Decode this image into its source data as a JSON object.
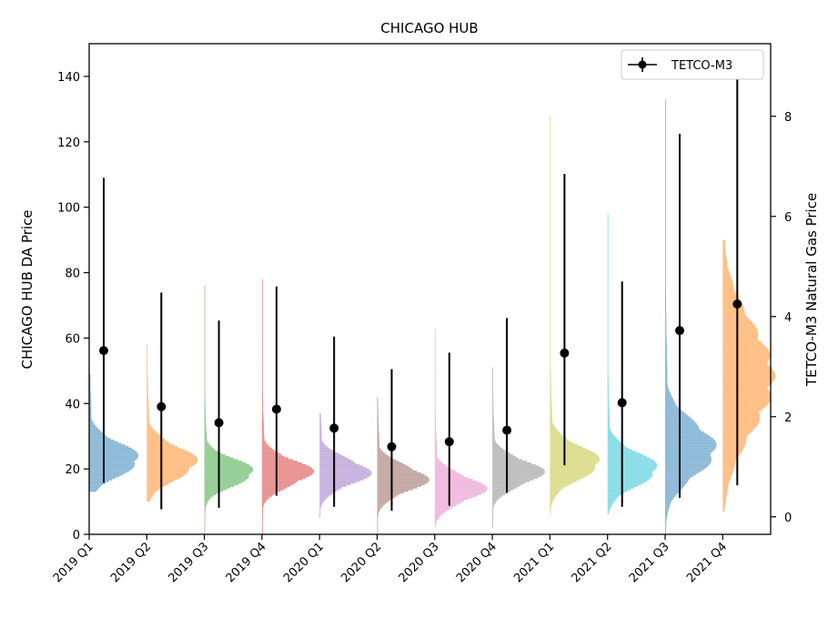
{
  "chart_data": {
    "type": "violin-histogram-errorbar",
    "title": "CHICAGO HUB",
    "ylabel_left": "CHICAGO HUB DA Price",
    "ylabel_right": "TETCO-M3 Natural Gas Price",
    "ylim_left": [
      0,
      150
    ],
    "ylim_right": [
      -0.35,
      9.45
    ],
    "yticks_left": [
      0,
      20,
      40,
      60,
      80,
      100,
      120,
      140
    ],
    "yticks_right": [
      0,
      2,
      4,
      6,
      8
    ],
    "categories": [
      "2019 Q1",
      "2019 Q2",
      "2019 Q3",
      "2019 Q4",
      "2020 Q1",
      "2020 Q2",
      "2020 Q3",
      "2020 Q4",
      "2021 Q1",
      "2021 Q2",
      "2021 Q3",
      "2021 Q4"
    ],
    "distribution_colors": [
      "#1f77b4",
      "#ff7f0e",
      "#2ca02c",
      "#d62728",
      "#9467bd",
      "#8c564b",
      "#e377c2",
      "#7f7f7f",
      "#bcbd22",
      "#17becf",
      "#1f77b4",
      "#ff7f0e"
    ],
    "distributions": [
      {
        "min": 13,
        "max": 49,
        "mode": 23,
        "spread": 5
      },
      {
        "min": 10,
        "max": 58,
        "mode": 22,
        "spread": 5
      },
      {
        "min": 0,
        "max": 76,
        "mode": 19,
        "spread": 4
      },
      {
        "min": 0,
        "max": 78,
        "mode": 19,
        "spread": 4
      },
      {
        "min": 5,
        "max": 37,
        "mode": 19,
        "spread": 4
      },
      {
        "min": 0,
        "max": 42,
        "mode": 17,
        "spread": 4
      },
      {
        "min": 2,
        "max": 63,
        "mode": 14,
        "spread": 4
      },
      {
        "min": 2,
        "max": 51,
        "mode": 19,
        "spread": 4
      },
      {
        "min": 6,
        "max": 128,
        "mode": 22,
        "spread": 5
      },
      {
        "min": 6,
        "max": 98,
        "mode": 20,
        "spread": 5
      },
      {
        "min": 0,
        "max": 133,
        "mode": 26,
        "spread": 8
      },
      {
        "min": 7,
        "max": 90,
        "mode": 48,
        "spread": 16
      }
    ],
    "series": [
      {
        "name": "TETCO-M3",
        "color": "#000000",
        "mean": [
          3.32,
          2.2,
          1.88,
          2.15,
          1.77,
          1.4,
          1.5,
          1.73,
          3.27,
          2.28,
          3.72,
          4.25
        ],
        "lower": [
          0.68,
          0.15,
          0.18,
          0.42,
          0.2,
          0.12,
          0.22,
          0.48,
          1.03,
          0.2,
          0.38,
          0.63
        ],
        "upper": [
          6.77,
          4.48,
          3.92,
          4.6,
          3.6,
          2.95,
          3.28,
          3.97,
          6.85,
          4.7,
          7.65,
          8.98
        ]
      }
    ],
    "legend_position": "top-right",
    "grid": false
  }
}
